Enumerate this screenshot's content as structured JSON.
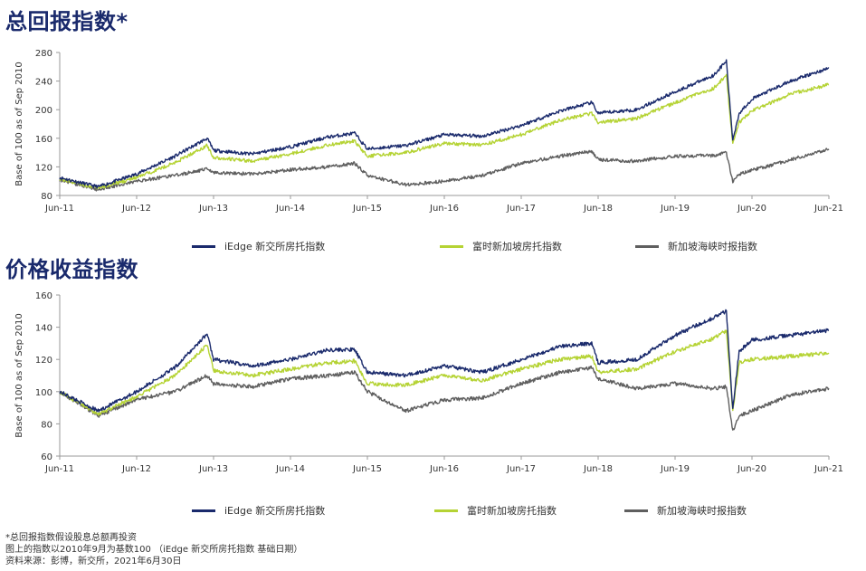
{
  "titles": {
    "top": "总回报指数*",
    "bottom": "价格收益指数"
  },
  "colors": {
    "navy": "#1a2a6c",
    "lime": "#b5d334",
    "gray": "#5f5f5f",
    "axis": "#999999"
  },
  "legend": [
    {
      "name": "iEdge 新交所房托指数",
      "color": "#1a2a6c"
    },
    {
      "name": "富时新加坡房托指数",
      "color": "#b5d334"
    },
    {
      "name": "新加坡海峡时报指数",
      "color": "#5f5f5f"
    }
  ],
  "notes": [
    "*总回报指数假设股息总额再投资",
    "图上的指数以2010年9月为基数100 （iEdge 新交所房托指数 基础日期）",
    "资料来源：彭博，新交所，2021年6月30日"
  ],
  "chart_data": [
    {
      "type": "line",
      "title": "总回报指数*",
      "ylabel": "Base of 100 as of Sep 2010",
      "xlabel": "",
      "ylim": [
        80,
        280
      ],
      "yticks": [
        80,
        120,
        160,
        200,
        240,
        280
      ],
      "xticks": [
        "Jun-11",
        "Jun-12",
        "Jun-13",
        "Jun-14",
        "Jun-15",
        "Jun-16",
        "Jun-17",
        "Jun-18",
        "Jun-19",
        "Jun-20",
        "Jun-21"
      ],
      "x": [
        "Jun-11",
        "Dec-11",
        "Jun-12",
        "Dec-12",
        "May-13",
        "Jun-13",
        "Dec-13",
        "Jun-14",
        "Dec-14",
        "Apr-15",
        "Jun-15",
        "Dec-15",
        "Jun-16",
        "Dec-16",
        "Jun-17",
        "Dec-17",
        "May-18",
        "Jun-18",
        "Dec-18",
        "Jun-19",
        "Dec-19",
        "Feb-20",
        "Mar-20",
        "Apr-20",
        "Jun-20",
        "Dec-20",
        "Jun-21"
      ],
      "series": [
        {
          "name": "iEdge 新交所房托指数",
          "values": [
            105,
            92,
            110,
            135,
            160,
            143,
            138,
            148,
            162,
            167,
            145,
            150,
            165,
            163,
            178,
            198,
            210,
            195,
            200,
            225,
            248,
            268,
            158,
            195,
            215,
            240,
            258
          ]
        },
        {
          "name": "富时新加坡房托指数",
          "values": [
            103,
            90,
            105,
            126,
            150,
            133,
            128,
            138,
            151,
            156,
            135,
            140,
            153,
            151,
            165,
            185,
            195,
            182,
            188,
            210,
            230,
            248,
            152,
            182,
            198,
            222,
            235
          ]
        },
        {
          "name": "新加坡海峡时报指数",
          "values": [
            102,
            88,
            100,
            108,
            117,
            112,
            110,
            116,
            120,
            125,
            108,
            95,
            100,
            108,
            125,
            135,
            142,
            130,
            128,
            135,
            136,
            140,
            100,
            110,
            115,
            130,
            145
          ]
        }
      ]
    },
    {
      "type": "line",
      "title": "价格收益指数",
      "ylabel": "Base of 100 as of Sep 2010",
      "xlabel": "",
      "ylim": [
        60,
        160
      ],
      "yticks": [
        60,
        80,
        100,
        120,
        140,
        160
      ],
      "xticks": [
        "Jun-11",
        "Jun-12",
        "Jun-13",
        "Jun-14",
        "Jun-15",
        "Jun-16",
        "Jun-17",
        "Jun-18",
        "Jun-19",
        "Jun-20",
        "Jun-21"
      ],
      "x": [
        "Jun-11",
        "Dec-11",
        "Jun-12",
        "Dec-12",
        "May-13",
        "Jun-13",
        "Dec-13",
        "Jun-14",
        "Dec-14",
        "Apr-15",
        "Jun-15",
        "Dec-15",
        "Jun-16",
        "Dec-16",
        "Jun-17",
        "Dec-17",
        "May-18",
        "Jun-18",
        "Dec-18",
        "Jun-19",
        "Dec-19",
        "Feb-20",
        "Mar-20",
        "Apr-20",
        "Jun-20",
        "Dec-20",
        "Jun-21"
      ],
      "series": [
        {
          "name": "iEdge 新交所房托指数",
          "values": [
            100,
            88,
            100,
            115,
            136,
            120,
            116,
            120,
            126,
            126,
            112,
            110,
            116,
            112,
            120,
            128,
            130,
            118,
            120,
            135,
            146,
            150,
            90,
            125,
            132,
            135,
            138
          ]
        },
        {
          "name": "富时新加坡房托指数",
          "values": [
            100,
            86,
            97,
            110,
            129,
            113,
            110,
            114,
            118,
            119,
            105,
            104,
            110,
            107,
            114,
            120,
            122,
            112,
            114,
            125,
            133,
            138,
            88,
            118,
            120,
            122,
            124
          ]
        },
        {
          "name": "新加坡海峡时报指数",
          "values": [
            100,
            85,
            95,
            100,
            110,
            105,
            103,
            108,
            110,
            112,
            100,
            88,
            95,
            96,
            105,
            112,
            115,
            108,
            102,
            105,
            102,
            103,
            75,
            85,
            88,
            98,
            102
          ]
        }
      ]
    }
  ]
}
